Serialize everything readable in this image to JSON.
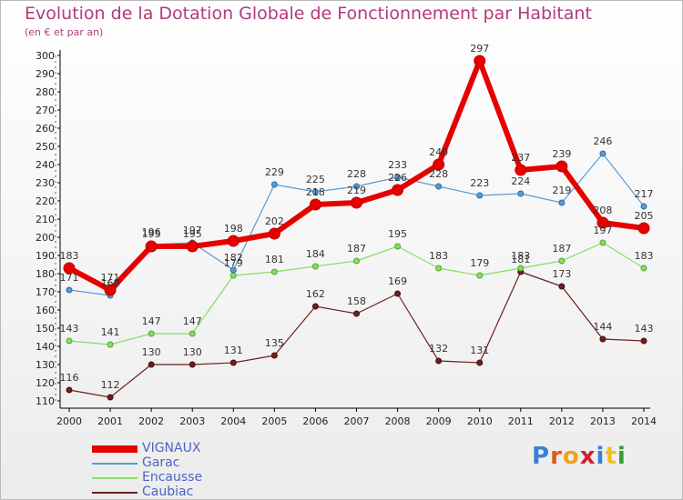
{
  "title": "Evolution de la Dotation Globale de Fonctionnement par Habitant",
  "subtitle": "(en € et par an)",
  "logo_text": "Proxiti",
  "chart_data": {
    "type": "line",
    "x": [
      "2000",
      "2001",
      "2002",
      "2003",
      "2004",
      "2005",
      "2006",
      "2007",
      "2008",
      "2009",
      "2010",
      "2011",
      "2012",
      "2013",
      "2014"
    ],
    "ylim": [
      110,
      300
    ],
    "yticks": [
      110,
      120,
      130,
      140,
      150,
      160,
      170,
      180,
      190,
      200,
      210,
      220,
      230,
      240,
      250,
      260,
      270,
      280,
      290,
      300
    ],
    "grid": false,
    "legend_position": "bottom-left",
    "series": [
      {
        "name": "VIGNAUX",
        "color": "#e60000",
        "values": [
          183,
          171,
          195,
          195,
          198,
          202,
          218,
          219,
          226,
          240,
          297,
          237,
          239,
          208,
          205
        ],
        "labels": [
          "183",
          "171",
          "195",
          "195",
          "198",
          "202",
          "218",
          "219",
          "226",
          "240",
          "297",
          "237",
          "239",
          "208",
          "205"
        ]
      },
      {
        "name": "Garac",
        "color": "#5b9bd5",
        "values": [
          171,
          168,
          196,
          197,
          182,
          229,
          225,
          228,
          233,
          228,
          223,
          224,
          219,
          246,
          217
        ],
        "labels": [
          "171",
          "168",
          "196",
          "197",
          "182",
          "229",
          "225",
          "228",
          "233",
          "228",
          "223",
          "224",
          "219",
          "246",
          "217"
        ]
      },
      {
        "name": "Encausse",
        "color": "#88dd66",
        "values": [
          143,
          141,
          147,
          147,
          179,
          181,
          184,
          187,
          195,
          183,
          179,
          183,
          187,
          197,
          183
        ],
        "labels": [
          "143",
          "141",
          "147",
          "147",
          "179",
          "181",
          "184",
          "187",
          "195",
          "183",
          "179",
          "183",
          "187",
          "197",
          "183"
        ]
      },
      {
        "name": "Caubiac",
        "color": "#6e1e1e",
        "values": [
          116,
          112,
          130,
          130,
          131,
          135,
          162,
          158,
          169,
          132,
          131,
          181,
          173,
          144,
          143
        ],
        "labels": [
          "116",
          "112",
          "130",
          "130",
          "131",
          "135",
          "162",
          "158",
          "169",
          "132",
          "131",
          "181",
          "173",
          "144",
          "143"
        ]
      }
    ]
  }
}
